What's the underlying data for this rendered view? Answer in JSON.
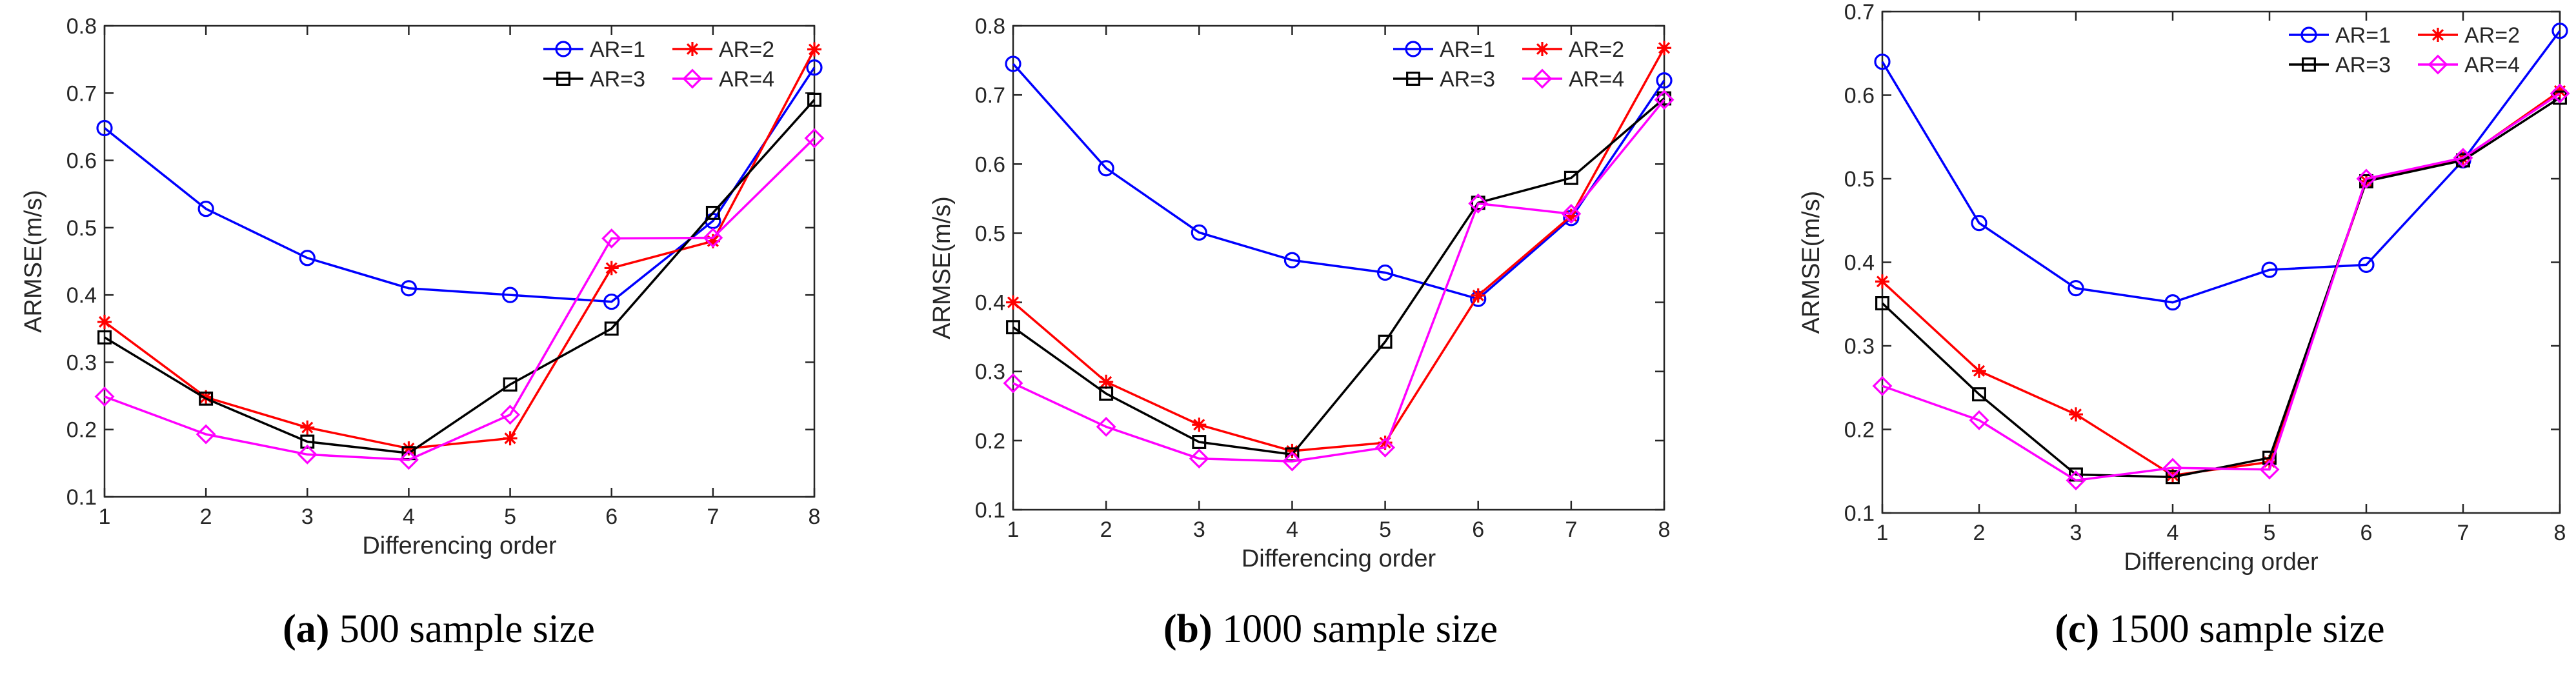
{
  "colors": {
    "AR=1": "#0000ff",
    "AR=2": "#ff0000",
    "AR=3": "#000000",
    "AR=4": "#ff00ff"
  },
  "chart_data": [
    {
      "type": "line",
      "caption_letter": "(a)",
      "caption_text": " 500 sample size",
      "xlabel": "Differencing order",
      "ylabel": "ARMSE(m/s)",
      "x": [
        1,
        2,
        3,
        4,
        5,
        6,
        7,
        8
      ],
      "xlim": [
        1,
        8
      ],
      "ylim": [
        0.1,
        0.8
      ],
      "yticks": [
        0.1,
        0.2,
        0.3,
        0.4,
        0.5,
        0.6,
        0.7,
        0.8
      ],
      "ytick_labels": [
        "0.1",
        "0.2",
        "0.3",
        "0.4",
        "0.5",
        "0.6",
        "0.7",
        "0.8"
      ],
      "xtick_labels": [
        "1",
        "2",
        "3",
        "4",
        "5",
        "6",
        "7",
        "8"
      ],
      "legend_position": "top-right",
      "series": [
        {
          "name": "AR=1",
          "marker": "circle",
          "values": [
            0.648,
            0.528,
            0.455,
            0.41,
            0.4,
            0.39,
            0.51,
            0.738
          ]
        },
        {
          "name": "AR=2",
          "marker": "star",
          "values": [
            0.36,
            0.248,
            0.203,
            0.172,
            0.187,
            0.44,
            0.48,
            0.765
          ]
        },
        {
          "name": "AR=3",
          "marker": "square",
          "values": [
            0.337,
            0.246,
            0.182,
            0.165,
            0.267,
            0.35,
            0.522,
            0.69
          ]
        },
        {
          "name": "AR=4",
          "marker": "diamond",
          "values": [
            0.249,
            0.193,
            0.163,
            0.155,
            0.222,
            0.484,
            0.485,
            0.633
          ]
        }
      ]
    },
    {
      "type": "line",
      "caption_letter": "(b)",
      "caption_text": " 1000 sample size",
      "xlabel": "Differencing order",
      "ylabel": "ARMSE(m/s)",
      "x": [
        1,
        2,
        3,
        4,
        5,
        6,
        7,
        8
      ],
      "xlim": [
        1,
        8
      ],
      "ylim": [
        0.1,
        0.8
      ],
      "yticks": [
        0.1,
        0.2,
        0.3,
        0.4,
        0.5,
        0.6,
        0.7,
        0.8
      ],
      "ytick_labels": [
        "0.1",
        "0.2",
        "0.3",
        "0.4",
        "0.5",
        "0.6",
        "0.7",
        "0.8"
      ],
      "xtick_labels": [
        "1",
        "2",
        "3",
        "4",
        "5",
        "6",
        "7",
        "8"
      ],
      "legend_position": "top-right",
      "series": [
        {
          "name": "AR=1",
          "marker": "circle",
          "values": [
            0.745,
            0.594,
            0.501,
            0.461,
            0.443,
            0.405,
            0.522,
            0.721
          ]
        },
        {
          "name": "AR=2",
          "marker": "star",
          "values": [
            0.4,
            0.285,
            0.223,
            0.185,
            0.197,
            0.41,
            0.525,
            0.768
          ]
        },
        {
          "name": "AR=3",
          "marker": "square",
          "values": [
            0.364,
            0.268,
            0.198,
            0.18,
            0.343,
            0.544,
            0.58,
            0.695
          ]
        },
        {
          "name": "AR=4",
          "marker": "diamond",
          "values": [
            0.283,
            0.22,
            0.174,
            0.17,
            0.19,
            0.543,
            0.528,
            0.693
          ]
        }
      ]
    },
    {
      "type": "line",
      "caption_letter": "(c)",
      "caption_text": " 1500 sample size",
      "xlabel": "Differencing order",
      "ylabel": "ARMSE(m/s)",
      "x": [
        1,
        2,
        3,
        4,
        5,
        6,
        7,
        8
      ],
      "xlim": [
        1,
        8
      ],
      "ylim": [
        0.1,
        0.7
      ],
      "yticks": [
        0.1,
        0.2,
        0.3,
        0.4,
        0.5,
        0.6,
        0.7
      ],
      "ytick_labels": [
        "0.1",
        "0.2",
        "0.3",
        "0.4",
        "0.5",
        "0.6",
        "0.7"
      ],
      "xtick_labels": [
        "1",
        "2",
        "3",
        "4",
        "5",
        "6",
        "7",
        "8"
      ],
      "legend_position": "top-right",
      "series": [
        {
          "name": "AR=1",
          "marker": "circle",
          "values": [
            0.64,
            0.447,
            0.369,
            0.352,
            0.391,
            0.397,
            0.522,
            0.677
          ]
        },
        {
          "name": "AR=2",
          "marker": "star",
          "values": [
            0.377,
            0.27,
            0.218,
            0.145,
            0.161,
            0.497,
            0.524,
            0.605
          ]
        },
        {
          "name": "AR=3",
          "marker": "square",
          "values": [
            0.351,
            0.242,
            0.146,
            0.143,
            0.166,
            0.497,
            0.522,
            0.597
          ]
        },
        {
          "name": "AR=4",
          "marker": "diamond",
          "values": [
            0.252,
            0.211,
            0.139,
            0.154,
            0.152,
            0.5,
            0.525,
            0.602
          ]
        }
      ]
    }
  ]
}
